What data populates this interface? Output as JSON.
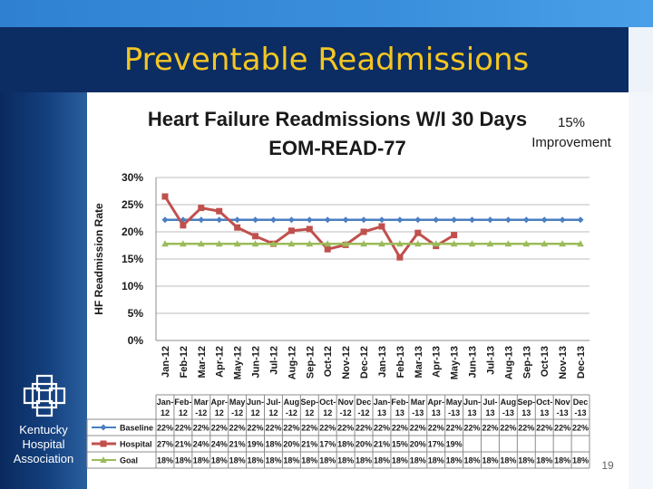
{
  "slide": {
    "title": "Preventable Readmissions",
    "page_number": "19",
    "colors": {
      "header": "#0c2d63",
      "title_text": "#f3c623",
      "sidebar": "#14407e"
    }
  },
  "logo": {
    "icon": "interlocking-squares-cross-logo",
    "name_lines": [
      "Kentucky",
      "Hospital",
      "Association"
    ]
  },
  "annotation": {
    "line1": "15%",
    "line2": "Improvement"
  },
  "chart_data": {
    "type": "line",
    "title_line1": "Heart Failure Readmissions W/I 30 Days",
    "title_line2": "EOM-READ-77",
    "ylabel": "HF Readmission Rate",
    "ylim": [
      0,
      30
    ],
    "yticks": [
      "0%",
      "5%",
      "10%",
      "15%",
      "20%",
      "25%",
      "30%"
    ],
    "categories": [
      "Jan-12",
      "Feb-12",
      "Mar-12",
      "Apr-12",
      "May-12",
      "Jun-12",
      "Jul-12",
      "Aug-12",
      "Sep-12",
      "Oct-12",
      "Nov-12",
      "Dec-12",
      "Jan-13",
      "Feb-13",
      "Mar-13",
      "Apr-13",
      "May-13",
      "Jun-13",
      "Jul-13",
      "Aug-13",
      "Sep-13",
      "Oct-13",
      "Nov-13",
      "Dec-13"
    ],
    "table_headers": [
      [
        "Jan-",
        "12"
      ],
      [
        "Feb-",
        "12"
      ],
      [
        "Mar",
        "-12"
      ],
      [
        "Apr-",
        "12"
      ],
      [
        "May",
        "-12"
      ],
      [
        "Jun-",
        "12"
      ],
      [
        "Jul-",
        "12"
      ],
      [
        "Aug",
        "-12"
      ],
      [
        "Sep-",
        "12"
      ],
      [
        "Oct-",
        "12"
      ],
      [
        "Nov",
        "-12"
      ],
      [
        "Dec",
        "-12"
      ],
      [
        "Jan-",
        "13"
      ],
      [
        "Feb-",
        "13"
      ],
      [
        "Mar",
        "-13"
      ],
      [
        "Apr-",
        "13"
      ],
      [
        "May",
        "-13"
      ],
      [
        "Jun-",
        "13"
      ],
      [
        "Jul-",
        "13"
      ],
      [
        "Aug",
        "-13"
      ],
      [
        "Sep-",
        "13"
      ],
      [
        "Oct-",
        "13"
      ],
      [
        "Nov",
        "-13"
      ],
      [
        "Dec",
        "-13"
      ]
    ],
    "series": [
      {
        "name": "Baseline",
        "color": "#4a7fc1",
        "marker": "diamond",
        "values": [
          22.2,
          22.2,
          22.2,
          22.2,
          22.2,
          22.2,
          22.2,
          22.2,
          22.2,
          22.2,
          22.2,
          22.2,
          22.2,
          22.2,
          22.2,
          22.2,
          22.2,
          22.2,
          22.2,
          22.2,
          22.2,
          22.2,
          22.2,
          22.2
        ],
        "labels": [
          "22%",
          "22%",
          "22%",
          "22%",
          "22%",
          "22%",
          "22%",
          "22%",
          "22%",
          "22%",
          "22%",
          "22%",
          "22%",
          "22%",
          "22%",
          "22%",
          "22%",
          "22%",
          "22%",
          "22%",
          "22%",
          "22%",
          "22%",
          "22%"
        ]
      },
      {
        "name": "Hospital",
        "color": "#c0504d",
        "marker": "square",
        "values": [
          26.5,
          21.2,
          24.4,
          23.8,
          20.8,
          19.2,
          17.8,
          20.2,
          20.5,
          16.8,
          17.6,
          20.0,
          21.0,
          15.3,
          19.8,
          17.4,
          19.4,
          null,
          null,
          null,
          null,
          null,
          null,
          null
        ],
        "labels": [
          "27%",
          "21%",
          "24%",
          "24%",
          "21%",
          "19%",
          "18%",
          "20%",
          "21%",
          "17%",
          "18%",
          "20%",
          "21%",
          "15%",
          "20%",
          "17%",
          "19%",
          "",
          "",
          "",
          "",
          "",
          "",
          ""
        ]
      },
      {
        "name": "Goal",
        "color": "#9bbb59",
        "marker": "triangle",
        "values": [
          17.8,
          17.8,
          17.8,
          17.8,
          17.8,
          17.8,
          17.8,
          17.8,
          17.8,
          17.8,
          17.8,
          17.8,
          17.8,
          17.8,
          17.8,
          17.8,
          17.8,
          17.8,
          17.8,
          17.8,
          17.8,
          17.8,
          17.8,
          17.8
        ],
        "labels": [
          "18%",
          "18%",
          "18%",
          "18%",
          "18%",
          "18%",
          "18%",
          "18%",
          "18%",
          "18%",
          "18%",
          "18%",
          "18%",
          "18%",
          "18%",
          "18%",
          "18%",
          "18%",
          "18%",
          "18%",
          "18%",
          "18%",
          "18%",
          "18%"
        ]
      }
    ]
  }
}
